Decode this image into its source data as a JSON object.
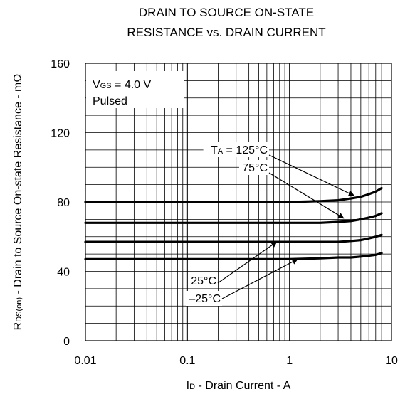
{
  "chart_data": {
    "type": "line",
    "title_lines": [
      "DRAIN TO SOURCE ON-STATE",
      "RESISTANCE vs. DRAIN CURRENT"
    ],
    "xlabel": {
      "main": "I",
      "sub": "D",
      "rest": " - Drain Current - A"
    },
    "ylabel": {
      "main": "R",
      "sub": "DS(on)",
      "rest": " - Drain to Source On-state Resistance - mΩ"
    },
    "x_scale": "log",
    "xlim": [
      0.01,
      10
    ],
    "ylim": [
      0,
      160
    ],
    "x_ticks": [
      {
        "value": 0.01,
        "label": "0.01"
      },
      {
        "value": 0.1,
        "label": "0.1"
      },
      {
        "value": 1,
        "label": "1"
      },
      {
        "value": 10,
        "label": "10"
      }
    ],
    "y_ticks": [
      {
        "value": 0,
        "label": "0"
      },
      {
        "value": 40,
        "label": "40"
      },
      {
        "value": 80,
        "label": "80"
      },
      {
        "value": 120,
        "label": "120"
      },
      {
        "value": 160,
        "label": "160"
      }
    ],
    "grid": true,
    "conditions": {
      "vgs": {
        "main": "V",
        "sub": "GS",
        "rest": " = 4.0 V"
      },
      "mode": "Pulsed"
    },
    "series": [
      {
        "name": "125°C",
        "x": [
          0.01,
          0.1,
          1,
          2,
          3,
          4,
          5,
          6,
          7,
          8
        ],
        "y": [
          80,
          80,
          80,
          80.5,
          81,
          82,
          83,
          84.5,
          86,
          88
        ]
      },
      {
        "name": "75°C",
        "x": [
          0.01,
          0.1,
          1,
          2,
          3,
          4,
          5,
          6,
          7,
          8
        ],
        "y": [
          68,
          68,
          68,
          68,
          68.5,
          69,
          70,
          71,
          72,
          73.5
        ]
      },
      {
        "name": "25°C",
        "x": [
          0.01,
          0.1,
          1,
          2,
          3,
          4,
          5,
          6,
          7,
          8
        ],
        "y": [
          57,
          57,
          57,
          57,
          57,
          57.5,
          58,
          59,
          60,
          61
        ]
      },
      {
        "name": "–25°C",
        "x": [
          0.01,
          0.1,
          1,
          2,
          3,
          4,
          5,
          6,
          7,
          8
        ],
        "y": [
          47,
          47,
          47,
          47.5,
          48,
          48,
          48.5,
          49,
          49.5,
          50.5
        ]
      }
    ],
    "annotations": [
      {
        "main": "T",
        "sub": "A",
        "rest": " = 125°C",
        "series": 0,
        "to_x": 4.3,
        "to_y": 82
      },
      {
        "main": "",
        "sub": "",
        "rest": "75°C",
        "series": 1,
        "to_x": 3.4,
        "to_y": 69
      },
      {
        "main": "",
        "sub": "",
        "rest": "25°C",
        "series": 2,
        "to_x": 0.75,
        "to_y": 57
      },
      {
        "main": "",
        "sub": "",
        "rest": "–25°C",
        "series": 3,
        "to_x": 1.2,
        "to_y": 47
      }
    ]
  }
}
